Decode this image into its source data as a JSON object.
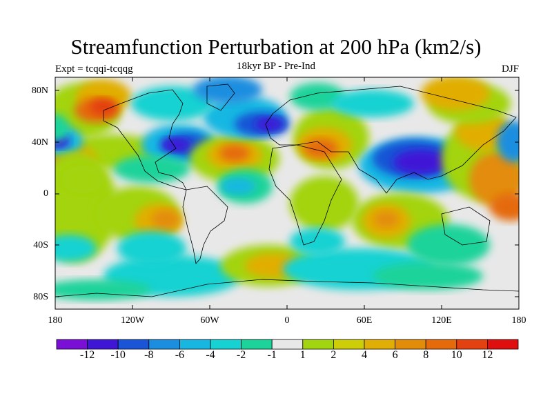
{
  "title": "Streamfunction Perturbation at 200 hPa (km2/s)",
  "subtitle_left": "Expt = tcqqi-tcqqg",
  "subtitle_center": "18kyr BP - Pre-Ind",
  "subtitle_right": "DJF",
  "lat_ticks": [
    "80N",
    "40N",
    "0",
    "40S",
    "80S"
  ],
  "lon_ticks": [
    "180",
    "120W",
    "60W",
    "0",
    "60E",
    "120E",
    "180"
  ],
  "colorbar": {
    "labels": [
      "-12",
      "-10",
      "-8",
      "-6",
      "-4",
      "-2",
      "-1",
      "1",
      "2",
      "4",
      "6",
      "8",
      "10",
      "12"
    ],
    "colors": [
      "#7a0fd6",
      "#3f16d6",
      "#1955d6",
      "#1c8ee0",
      "#17b7e2",
      "#17d2d2",
      "#1cd39a",
      "#e8e8e8",
      "#a3d410",
      "#cdcd08",
      "#e1ae05",
      "#e38c0a",
      "#e56a0b",
      "#e44110",
      "#e00f0f"
    ]
  },
  "legend_colors": {
    "land_outline": "#000000",
    "missing": "#e8e8e8"
  }
}
